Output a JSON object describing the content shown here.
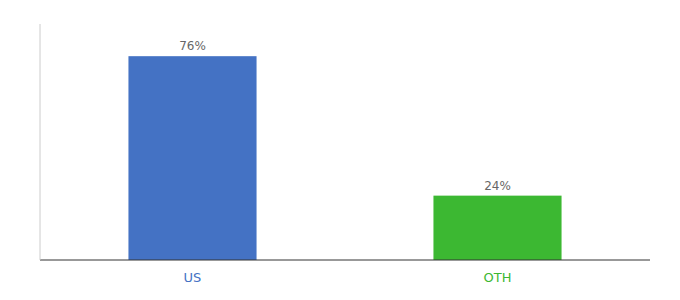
{
  "chart_data": {
    "type": "bar",
    "categories": [
      "US",
      "OTH"
    ],
    "values": [
      76,
      24
    ],
    "colors": [
      "#4472c4",
      "#3cb832"
    ],
    "value_labels": [
      "76%",
      "24%"
    ],
    "data_labels": true,
    "ylim": [
      0,
      88
    ],
    "tick_labels": "x"
  }
}
